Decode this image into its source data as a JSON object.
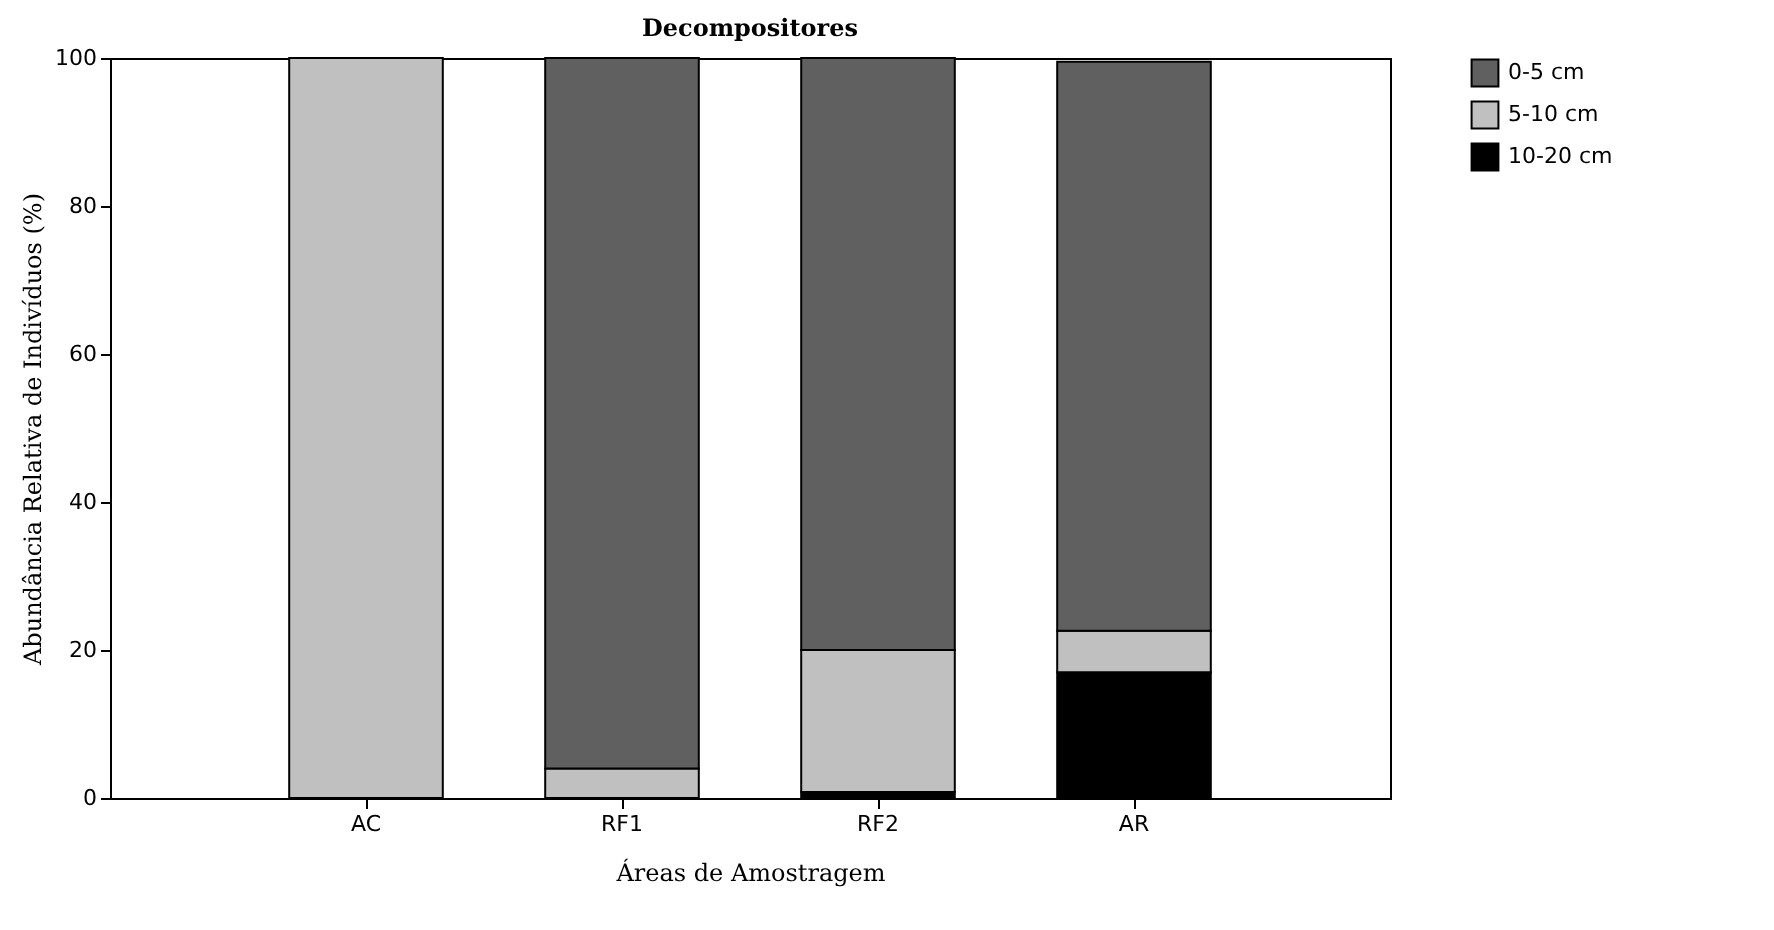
{
  "chart_data": {
    "type": "bar",
    "title": "Decompositores",
    "xlabel": "Áreas de Amostragem",
    "ylabel": "Abundância Relativa de Indivíduos (%)",
    "categories": [
      "AC",
      "RF1",
      "RF2",
      "AR"
    ],
    "stacked": true,
    "series": [
      {
        "name": "10-20 cm",
        "color": "#000000",
        "values": [
          0,
          0,
          0.8,
          17
        ]
      },
      {
        "name": "5-10 cm",
        "color": "#c0c0c0",
        "values": [
          100,
          4,
          19.2,
          5.6
        ]
      },
      {
        "name": "0-5 cm",
        "color": "#606060",
        "values": [
          0,
          96,
          80,
          76.9
        ]
      }
    ],
    "ylim": [
      0,
      100
    ],
    "yticks": [
      0,
      20,
      40,
      60,
      80,
      100
    ],
    "grid": false,
    "legend": "right"
  }
}
